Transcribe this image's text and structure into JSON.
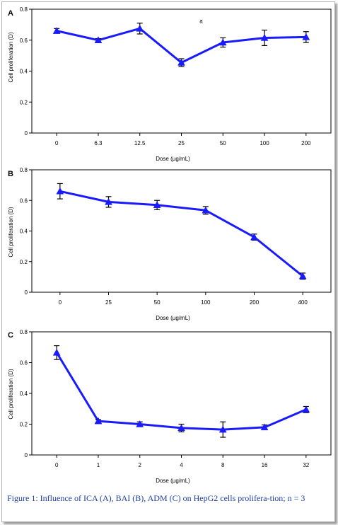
{
  "caption": "Figure 1: Influence of ICA (A), BAI (B), ADM (C) on HepG2 cells prolifera-tion; n = 3",
  "colors": {
    "series": "#1a1aff",
    "error_bar": "#000000",
    "caption": "#1e3fa8"
  },
  "chart_data": [
    {
      "panel_label": "A",
      "type": "line",
      "xlabel": "Dose (µg/mL)",
      "ylabel": "Cell proliferation (D)",
      "ylim": [
        0,
        0.8
      ],
      "yticks": [
        "0",
        "0.2",
        "0.4",
        "0.6",
        "0.8"
      ],
      "categories": [
        "0",
        "6.3",
        "12.5",
        "25",
        "50",
        "100",
        "200"
      ],
      "values": [
        0.66,
        0.6,
        0.675,
        0.455,
        0.585,
        0.615,
        0.62
      ],
      "errors": [
        0.015,
        0.01,
        0.035,
        0.025,
        0.03,
        0.05,
        0.035
      ],
      "annotation": {
        "text": "a",
        "category": "25",
        "y": 0.71
      },
      "grid": false
    },
    {
      "panel_label": "B",
      "type": "line",
      "xlabel": "Dose (µg/mL)",
      "ylabel": "Cell proliferation (D)",
      "ylim": [
        0,
        0.8
      ],
      "yticks": [
        "0",
        "0.2",
        "0.4",
        "0.6",
        "0.8"
      ],
      "categories": [
        "0",
        "25",
        "50",
        "100",
        "200",
        "400"
      ],
      "values": [
        0.66,
        0.59,
        0.57,
        0.535,
        0.36,
        0.105
      ],
      "errors": [
        0.05,
        0.035,
        0.03,
        0.025,
        0.02,
        0.02
      ],
      "grid": false
    },
    {
      "panel_label": "C",
      "type": "line",
      "xlabel": "Dose (µg/mL)",
      "ylabel": "Cell proliferation (D)",
      "ylim": [
        0,
        0.8
      ],
      "yticks": [
        "0",
        "0.2",
        "0.4",
        "0.6",
        "0.8"
      ],
      "categories": [
        "0",
        "1",
        "2",
        "4",
        "8",
        "16",
        "32"
      ],
      "values": [
        0.665,
        0.22,
        0.2,
        0.175,
        0.165,
        0.18,
        0.295
      ],
      "errors": [
        0.045,
        0.01,
        0.015,
        0.025,
        0.05,
        0.015,
        0.02
      ],
      "grid": false
    }
  ]
}
